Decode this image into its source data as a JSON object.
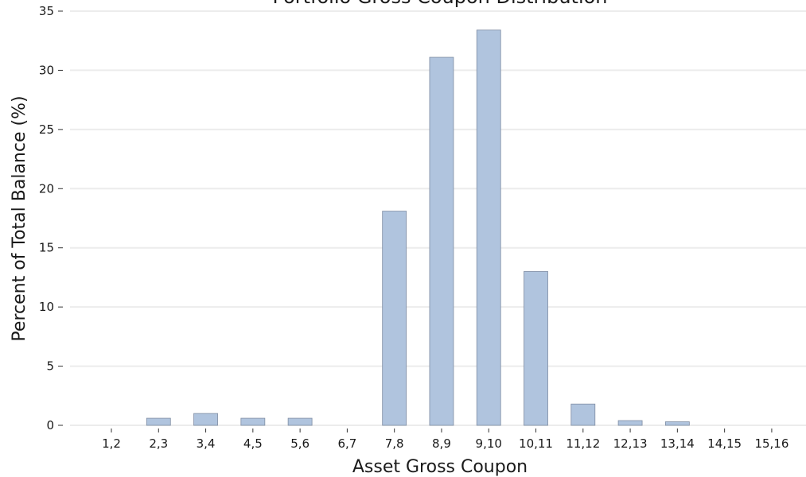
{
  "chart_data": {
    "type": "bar",
    "title": "Portfolio Gross Coupon Distribution",
    "xlabel": "Asset Gross Coupon",
    "ylabel": "Percent of Total Balance (%)",
    "categories": [
      "1,2",
      "2,3",
      "3,4",
      "4,5",
      "5,6",
      "6,7",
      "7,8",
      "8,9",
      "9,10",
      "10,11",
      "11,12",
      "12,13",
      "13,14",
      "14,15",
      "15,16"
    ],
    "values": [
      0,
      0.6,
      1.0,
      0.6,
      0.6,
      0,
      18.1,
      31.1,
      33.4,
      13.0,
      1.8,
      0.4,
      0.3,
      0,
      0
    ],
    "ylim": [
      0,
      35
    ],
    "yticks": [
      0,
      5,
      10,
      15,
      20,
      25,
      30,
      35
    ],
    "grid": true,
    "bar_color": "#b0c4de"
  }
}
